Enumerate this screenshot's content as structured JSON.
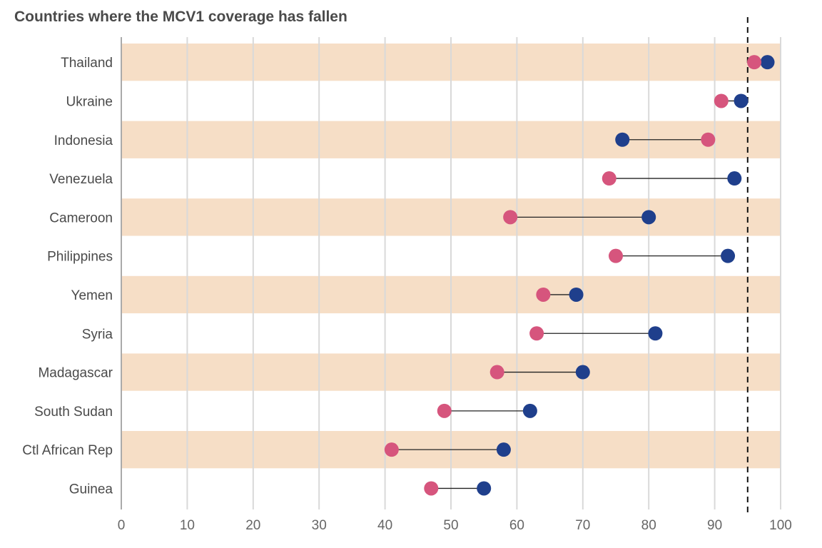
{
  "chart_data": {
    "type": "dumbbell",
    "title": "Countries where the MCV1 coverage has fallen",
    "xlabel": "",
    "ylabel": "",
    "xlim": [
      0,
      100
    ],
    "xticks": [
      0,
      10,
      20,
      30,
      40,
      50,
      60,
      70,
      80,
      90,
      100
    ],
    "reference_line": 95,
    "categories": [
      "Thailand",
      "Ukraine",
      "Indonesia",
      "Venezuela",
      "Cameroon",
      "Philippines",
      "Yemen",
      "Syria",
      "Madagascar",
      "South Sudan",
      "Ctl African Rep",
      "Guinea"
    ],
    "series": [
      {
        "color": "#1f3f8c",
        "values": [
          98,
          94,
          76,
          93,
          80,
          92,
          69,
          81,
          70,
          62,
          58,
          55
        ]
      },
      {
        "color": "#d6557d",
        "values": [
          96,
          91,
          89,
          74,
          59,
          75,
          64,
          63,
          57,
          49,
          41,
          47
        ]
      }
    ],
    "band_color": "#f6dec6",
    "grid": true,
    "legend": "none"
  }
}
